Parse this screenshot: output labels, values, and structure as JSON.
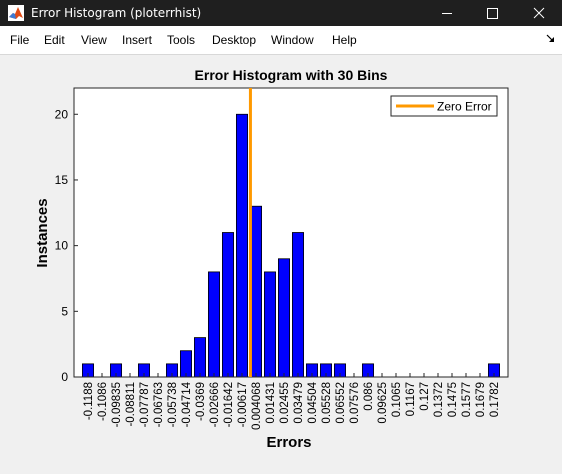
{
  "window": {
    "title": "Error Histogram (ploterrhist)",
    "icon": "matlab-icon",
    "controls": [
      "minimize-icon",
      "maximize-icon",
      "close-icon"
    ]
  },
  "menu": {
    "items": [
      "File",
      "Edit",
      "View",
      "Insert",
      "Tools",
      "Desktop",
      "Window",
      "Help"
    ],
    "overflow_icon": "dock-arrow-icon"
  },
  "colors": {
    "bar_fill": "#0000ff",
    "zero_line": "#ff9900",
    "titlebar": "#1f1f1f"
  },
  "chart_data": {
    "type": "bar",
    "title": "Error Histogram with 30 Bins",
    "xlabel": "Errors",
    "ylabel": "Instances",
    "categories": [
      "-0.1188",
      "-0.1086",
      "-0.09835",
      "-0.08811",
      "-0.07787",
      "-0.06763",
      "-0.05738",
      "-0.04714",
      "-0.0369",
      "-0.02666",
      "-0.01642",
      "-0.00617",
      "0.004068",
      "0.01431",
      "0.02455",
      "0.03479",
      "0.04504",
      "0.05528",
      "0.06552",
      "0.07576",
      "0.086",
      "0.09625",
      "0.1065",
      "0.1167",
      "0.127",
      "0.1372",
      "0.1475",
      "0.1577",
      "0.1679",
      "0.1782"
    ],
    "values": [
      1,
      0,
      1,
      0,
      1,
      0,
      1,
      2,
      3,
      8,
      11,
      20,
      13,
      8,
      9,
      11,
      1,
      1,
      1,
      0,
      1,
      0,
      0,
      0,
      0,
      0,
      0,
      0,
      0,
      1
    ],
    "ylim": [
      0,
      22
    ],
    "yticks": [
      0,
      5,
      10,
      15,
      20
    ],
    "zero_error_x": 0,
    "legend": {
      "entries": [
        "Zero Error"
      ],
      "position": "top-right"
    },
    "grid": false
  }
}
